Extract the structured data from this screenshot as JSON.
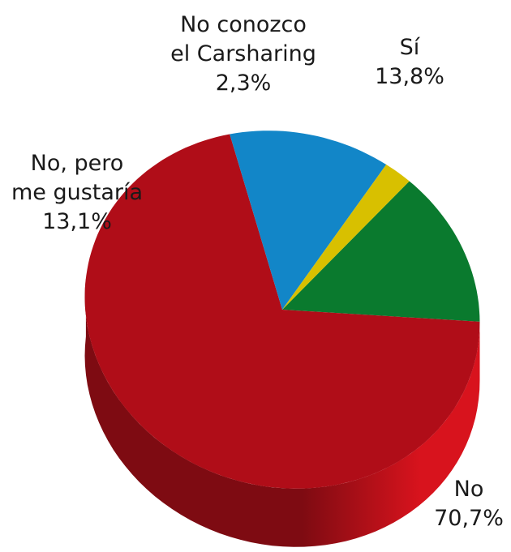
{
  "chart_data": {
    "type": "pie",
    "style": "3d",
    "slices": [
      {
        "label_lines": [
          "Sí"
        ],
        "value_label": "13,8%",
        "value": 13.8,
        "color": "#0a7a2e"
      },
      {
        "label_lines": [
          "No"
        ],
        "value_label": "70,7%",
        "value": 70.7,
        "color": "#b00d18"
      },
      {
        "label_lines": [
          "No, pero",
          "me gustaría"
        ],
        "value_label": "13,1%",
        "value": 13.1,
        "color": "#1286c8"
      },
      {
        "label_lines": [
          "No conozco",
          "el Carsharing"
        ],
        "value_label": "2,3%",
        "value": 2.3,
        "color": "#d8c000"
      }
    ],
    "side_colors": {
      "dark": "#7e0b12",
      "light": "#d8131d"
    }
  }
}
